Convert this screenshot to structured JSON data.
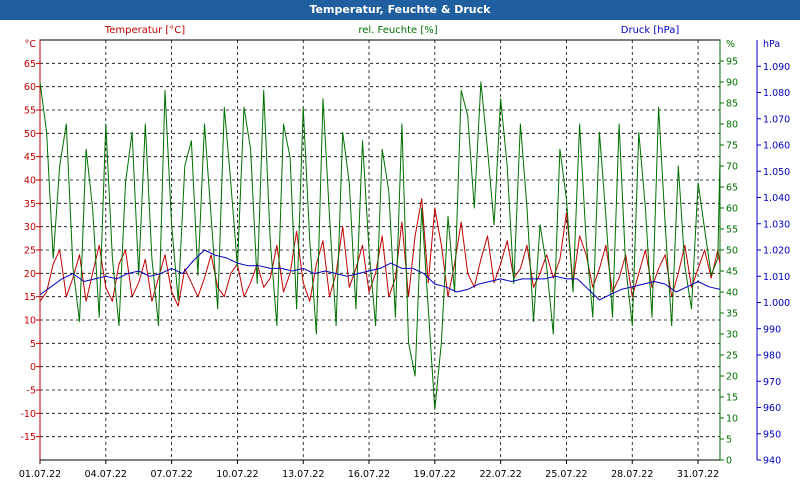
{
  "window": {
    "title": "Temperatur, Feuchte & Druck"
  },
  "chart_data": {
    "type": "line",
    "title": "Temperatur, Feuchte & Druck",
    "legend_placement": "top",
    "grid": true,
    "colors": {
      "temperature": "#c00000",
      "humidity": "#007000",
      "pressure": "#0000c0",
      "grid": "#000000"
    },
    "x_axis": {
      "tick_labels": [
        "01.07.22",
        "04.07.22",
        "07.07.22",
        "10.07.22",
        "13.07.22",
        "16.07.22",
        "19.07.22",
        "22.07.22",
        "25.07.22",
        "28.07.22",
        "31.07.22"
      ],
      "range_days": [
        1,
        32
      ]
    },
    "axes": {
      "temperature": {
        "unit_label": "°C",
        "range": [
          -20,
          70
        ],
        "ticks": [
          "65",
          "60",
          "55",
          "50",
          "45",
          "40",
          "35",
          "30",
          "25",
          "20",
          "15",
          "10",
          "5",
          "0",
          "-5",
          "-10",
          "-15"
        ]
      },
      "humidity": {
        "unit_label": "%",
        "range": [
          0,
          100
        ],
        "ticks": [
          "95",
          "90",
          "85",
          "80",
          "75",
          "70",
          "65",
          "60",
          "55",
          "50",
          "45",
          "40",
          "35",
          "30",
          "25",
          "20",
          "15",
          "10",
          "5",
          "0"
        ]
      },
      "pressure": {
        "unit_label": "hPa",
        "range": [
          940,
          1100
        ],
        "ticks": [
          "1.090",
          "1.080",
          "1.070",
          "1.060",
          "1.050",
          "1.040",
          "1.030",
          "1.020",
          "1.010",
          "1.000",
          "990",
          "980",
          "970",
          "960",
          "950",
          "940"
        ]
      }
    },
    "series": [
      {
        "name": "Temperatur [°C]",
        "axis": "temperature",
        "color": "#c00000",
        "x": [
          1.0,
          1.3,
          1.6,
          1.9,
          2.2,
          2.5,
          2.8,
          3.1,
          3.4,
          3.7,
          4.0,
          4.3,
          4.6,
          4.9,
          5.2,
          5.5,
          5.8,
          6.1,
          6.4,
          6.7,
          7.0,
          7.3,
          7.6,
          7.9,
          8.2,
          8.5,
          8.8,
          9.1,
          9.4,
          9.7,
          10.0,
          10.3,
          10.6,
          10.9,
          11.2,
          11.5,
          11.8,
          12.1,
          12.4,
          12.7,
          13.0,
          13.3,
          13.6,
          13.9,
          14.2,
          14.5,
          14.8,
          15.1,
          15.4,
          15.7,
          16.0,
          16.3,
          16.6,
          16.9,
          17.2,
          17.5,
          17.8,
          18.1,
          18.4,
          18.7,
          19.0,
          19.3,
          19.6,
          19.9,
          20.2,
          20.5,
          20.8,
          21.1,
          21.4,
          21.7,
          22.0,
          22.3,
          22.6,
          22.9,
          23.2,
          23.5,
          23.8,
          24.1,
          24.4,
          24.7,
          25.0,
          25.3,
          25.6,
          25.9,
          26.2,
          26.5,
          26.8,
          27.1,
          27.4,
          27.7,
          28.0,
          28.3,
          28.6,
          28.9,
          29.2,
          29.5,
          29.8,
          30.1,
          30.4,
          30.7,
          31.0,
          31.3,
          31.6,
          31.9,
          32.0
        ],
        "values": [
          14,
          16,
          22,
          25,
          15,
          19,
          24,
          14,
          20,
          26,
          17,
          14,
          22,
          25,
          15,
          18,
          23,
          14,
          19,
          24,
          16,
          13,
          21,
          18,
          15,
          19,
          24,
          17,
          15,
          20,
          22,
          15,
          18,
          22,
          17,
          19,
          26,
          16,
          20,
          29,
          18,
          14,
          22,
          27,
          15,
          20,
          30,
          17,
          21,
          26,
          16,
          20,
          28,
          15,
          19,
          31,
          15,
          28,
          36,
          18,
          34,
          26,
          15,
          22,
          31,
          20,
          17,
          23,
          28,
          18,
          22,
          27,
          19,
          21,
          26,
          17,
          20,
          24,
          19,
          23,
          33,
          18,
          28,
          24,
          17,
          21,
          26,
          16,
          19,
          24,
          15,
          20,
          25,
          17,
          21,
          24,
          15,
          20,
          26,
          17,
          21,
          25,
          19,
          25,
          22
        ]
      },
      {
        "name": "rel. Feuchte [%]",
        "axis": "humidity",
        "color": "#007000",
        "x": [
          1.0,
          1.3,
          1.6,
          1.9,
          2.2,
          2.5,
          2.8,
          3.1,
          3.4,
          3.7,
          4.0,
          4.3,
          4.6,
          4.9,
          5.2,
          5.5,
          5.8,
          6.1,
          6.4,
          6.7,
          7.0,
          7.3,
          7.6,
          7.9,
          8.2,
          8.5,
          8.8,
          9.1,
          9.4,
          9.7,
          10.0,
          10.3,
          10.6,
          10.9,
          11.2,
          11.5,
          11.8,
          12.1,
          12.4,
          12.7,
          13.0,
          13.3,
          13.6,
          13.9,
          14.2,
          14.5,
          14.8,
          15.1,
          15.4,
          15.7,
          16.0,
          16.3,
          16.6,
          16.9,
          17.2,
          17.5,
          17.8,
          18.1,
          18.4,
          18.7,
          19.0,
          19.3,
          19.6,
          19.9,
          20.2,
          20.5,
          20.8,
          21.1,
          21.4,
          21.7,
          22.0,
          22.3,
          22.6,
          22.9,
          23.2,
          23.5,
          23.8,
          24.1,
          24.4,
          24.7,
          25.0,
          25.3,
          25.6,
          25.9,
          26.2,
          26.5,
          26.8,
          27.1,
          27.4,
          27.7,
          28.0,
          28.3,
          28.6,
          28.9,
          29.2,
          29.5,
          29.8,
          30.1,
          30.4,
          30.7,
          31.0,
          31.3,
          31.6,
          31.9,
          32.0
        ],
        "values": [
          90,
          78,
          48,
          70,
          80,
          46,
          33,
          74,
          60,
          34,
          80,
          48,
          32,
          66,
          78,
          44,
          80,
          48,
          32,
          88,
          56,
          38,
          70,
          76,
          44,
          80,
          58,
          36,
          84,
          66,
          46,
          84,
          74,
          42,
          88,
          52,
          32,
          80,
          72,
          36,
          84,
          52,
          30,
          86,
          58,
          32,
          78,
          66,
          36,
          76,
          50,
          32,
          74,
          64,
          34,
          80,
          28,
          20,
          60,
          36,
          12,
          28,
          58,
          40,
          88,
          82,
          60,
          90,
          74,
          56,
          86,
          70,
          42,
          80,
          60,
          33,
          56,
          46,
          30,
          74,
          62,
          40,
          80,
          52,
          34,
          78,
          58,
          34,
          80,
          46,
          32,
          78,
          60,
          34,
          84,
          56,
          32,
          70,
          46,
          36,
          66,
          55,
          44,
          48,
          72
        ]
      },
      {
        "name": "Druck [hPa]",
        "axis": "pressure",
        "color": "#0000c0",
        "x": [
          1,
          1.5,
          2,
          2.5,
          3,
          3.5,
          4,
          4.5,
          5,
          5.5,
          6,
          6.5,
          7,
          7.5,
          8,
          8.5,
          9,
          9.5,
          10,
          10.5,
          11,
          11.5,
          12,
          12.5,
          13,
          13.5,
          14,
          14.5,
          15,
          15.5,
          16,
          16.5,
          17,
          17.5,
          18,
          18.5,
          19,
          19.5,
          20,
          20.5,
          21,
          21.5,
          22,
          22.5,
          23,
          23.5,
          24,
          24.5,
          25,
          25.5,
          26,
          26.5,
          27,
          27.5,
          28,
          28.5,
          29,
          29.5,
          30,
          30.5,
          31,
          31.5,
          32
        ],
        "values": [
          1003,
          1006,
          1009,
          1011,
          1008,
          1009,
          1010,
          1009,
          1011,
          1012,
          1010,
          1011,
          1013,
          1011,
          1016,
          1020,
          1018,
          1017,
          1015,
          1014,
          1014,
          1013,
          1013,
          1012,
          1013,
          1011,
          1012,
          1011,
          1010,
          1011,
          1012,
          1013,
          1015,
          1013,
          1013,
          1011,
          1007,
          1006,
          1004,
          1005,
          1007,
          1008,
          1009,
          1008,
          1009,
          1009,
          1009,
          1010,
          1009,
          1009,
          1005,
          1001,
          1003,
          1005,
          1006,
          1007,
          1008,
          1007,
          1004,
          1006,
          1008,
          1006,
          1005
        ]
      }
    ]
  }
}
